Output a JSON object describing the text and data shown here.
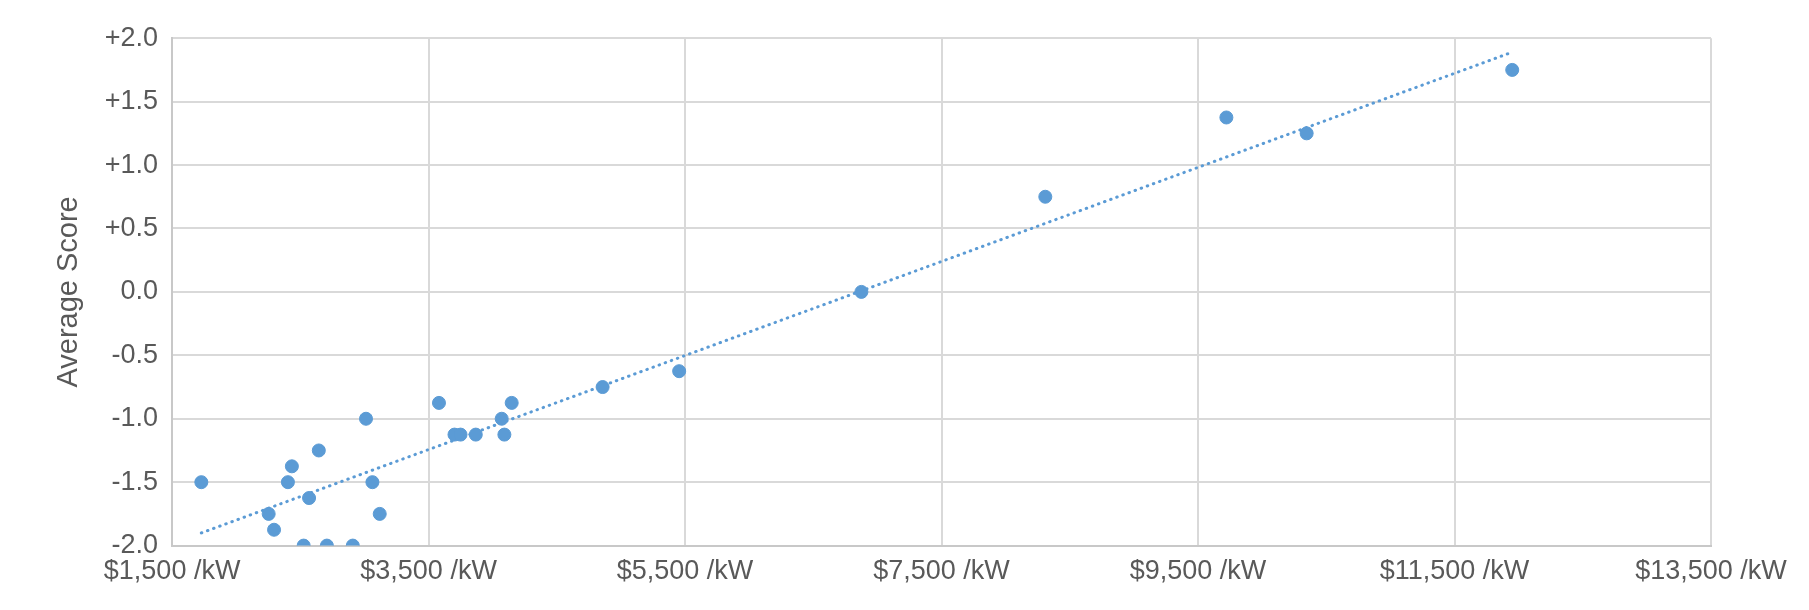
{
  "chart_data": {
    "type": "scatter",
    "ylabel": "Average Score",
    "x": [
      1728,
      2253,
      2295,
      2403,
      2434,
      2526,
      2568,
      2644,
      2707,
      2909,
      3012,
      3062,
      3119,
      3581,
      3702,
      3749,
      3868,
      3888,
      4070,
      4091,
      4148,
      4857,
      5454,
      6875,
      8309,
      9721,
      10347,
      11950
    ],
    "series": [
      {
        "type": "scatter",
        "color": "#5b9bd5",
        "marker": "circle",
        "values": [
          -1.5,
          -1.75,
          -1.875,
          -1.5,
          -1.375,
          -2.0,
          -1.625,
          -1.25,
          -2.0,
          -2.0,
          -1.0,
          -1.5,
          -1.75,
          -0.875,
          -1.125,
          -1.125,
          -1.125,
          null,
          -1.0,
          -1.125,
          -0.875,
          -0.75,
          -0.625,
          0.0,
          0.75,
          1.375,
          1.25,
          1.75
        ]
      },
      {
        "type": "line",
        "color": "#5b9bd5",
        "line_style": "dotted",
        "marker": "none",
        "x": [
          1728,
          11950
        ],
        "values": [
          -1.9,
          1.89
        ]
      }
    ],
    "xlim": [
      1500,
      13500
    ],
    "xticks": [
      {
        "value": 1500,
        "label": "$1,500 /kW"
      },
      {
        "value": 3500,
        "label": "$3,500 /kW"
      },
      {
        "value": 5500,
        "label": "$5,500 /kW"
      },
      {
        "value": 7500,
        "label": "$7,500 /kW"
      },
      {
        "value": 9500,
        "label": "$9,500 /kW"
      },
      {
        "value": 11500,
        "label": "$11,500 /kW"
      },
      {
        "value": 13500,
        "label": "$13,500 /kW"
      }
    ],
    "ylim": [
      -2,
      2
    ],
    "yticks": [
      {
        "value": -2,
        "label": "-2.0"
      },
      {
        "value": -1.5,
        "label": "-1.5"
      },
      {
        "value": -1,
        "label": "-1.0"
      },
      {
        "value": -0.5,
        "label": "-0.5"
      },
      {
        "value": 0,
        "label": "0.0"
      },
      {
        "value": 0.5,
        "label": "+0.5"
      },
      {
        "value": 1,
        "label": "+1.0"
      },
      {
        "value": 1.5,
        "label": "+1.5"
      },
      {
        "value": 2,
        "label": "+2.0"
      }
    ],
    "grid": true,
    "legend": false
  }
}
